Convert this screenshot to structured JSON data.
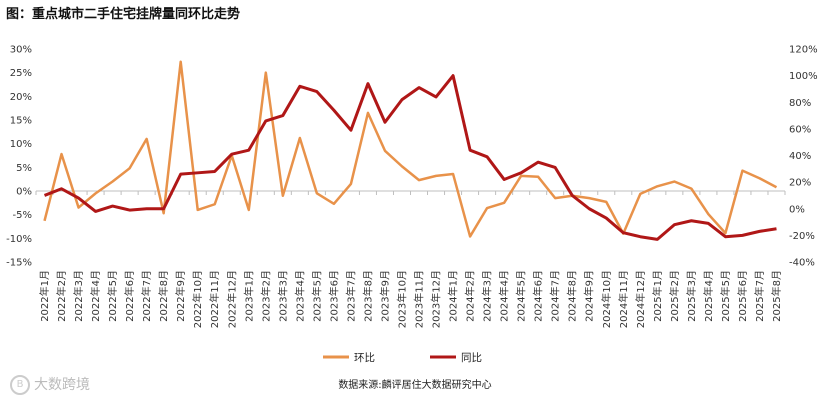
{
  "title": "图：重点城市二手住宅挂牌量同环比走势",
  "source": "数据来源:麟评居住大数据研究中心",
  "watermark": "大数跨境",
  "colors": {
    "mom": "#E8924A",
    "yoy": "#B01717"
  },
  "chart_data": {
    "type": "line",
    "title": "图：重点城市二手住宅挂牌量同环比走势",
    "categories": [
      "2022年1月",
      "2022年2月",
      "2022年3月",
      "2022年4月",
      "2022年5月",
      "2022年6月",
      "2022年7月",
      "2022年8月",
      "2022年9月",
      "2022年10月",
      "2022年11月",
      "2022年12月",
      "2023年1月",
      "2023年2月",
      "2023年3月",
      "2023年4月",
      "2023年5月",
      "2023年6月",
      "2023年7月",
      "2023年8月",
      "2023年9月",
      "2023年10月",
      "2023年11月",
      "2023年12月",
      "2024年1月",
      "2024年2月",
      "2024年3月",
      "2024年4月",
      "2024年5月",
      "2024年6月",
      "2024年7月",
      "2024年8月",
      "2024年9月",
      "2024年10月",
      "2024年11月",
      "2024年12月",
      "2025年1月",
      "2025年2月",
      "2025年3月",
      "2025年4月",
      "2025年5月",
      "2025年6月",
      "2025年7月",
      "2025年8月"
    ],
    "y_left": {
      "min": -15,
      "max": 30,
      "step": 5,
      "format": "%"
    },
    "y_right": {
      "min": -40,
      "max": 120,
      "step": 20,
      "format": "%"
    },
    "series": [
      {
        "name": "环比",
        "axis": "left",
        "values": [
          -6.3,
          7.8,
          -3.5,
          -0.5,
          2.0,
          4.8,
          11.0,
          -4.7,
          27.3,
          -4.0,
          -2.8,
          7.5,
          -4.0,
          25.0,
          -1.0,
          11.2,
          -0.5,
          -2.7,
          1.5,
          16.5,
          8.5,
          5.2,
          2.3,
          3.2,
          3.6,
          -9.6,
          -3.6,
          -2.5,
          3.2,
          3.0,
          -1.5,
          -1.0,
          -1.5,
          -2.3,
          -9.0,
          -0.6,
          1.0,
          2.0,
          0.5,
          -4.9,
          -8.9,
          4.3,
          2.7,
          0.8
        ]
      },
      {
        "name": "同比",
        "axis": "right",
        "values": [
          10,
          15,
          8,
          -2,
          2,
          -1,
          0,
          0,
          26,
          27,
          28,
          41,
          44,
          66,
          70,
          92,
          88,
          74,
          59,
          94,
          65,
          82,
          91,
          84,
          100,
          44,
          39,
          22,
          27,
          35,
          31,
          10,
          0,
          -7,
          -18,
          -21,
          -23,
          -12,
          -9,
          -11,
          -21,
          -20,
          -17,
          -15
        ]
      }
    ],
    "legend": [
      "环比",
      "同比"
    ],
    "legend_position": "bottom-center",
    "grid": false
  }
}
